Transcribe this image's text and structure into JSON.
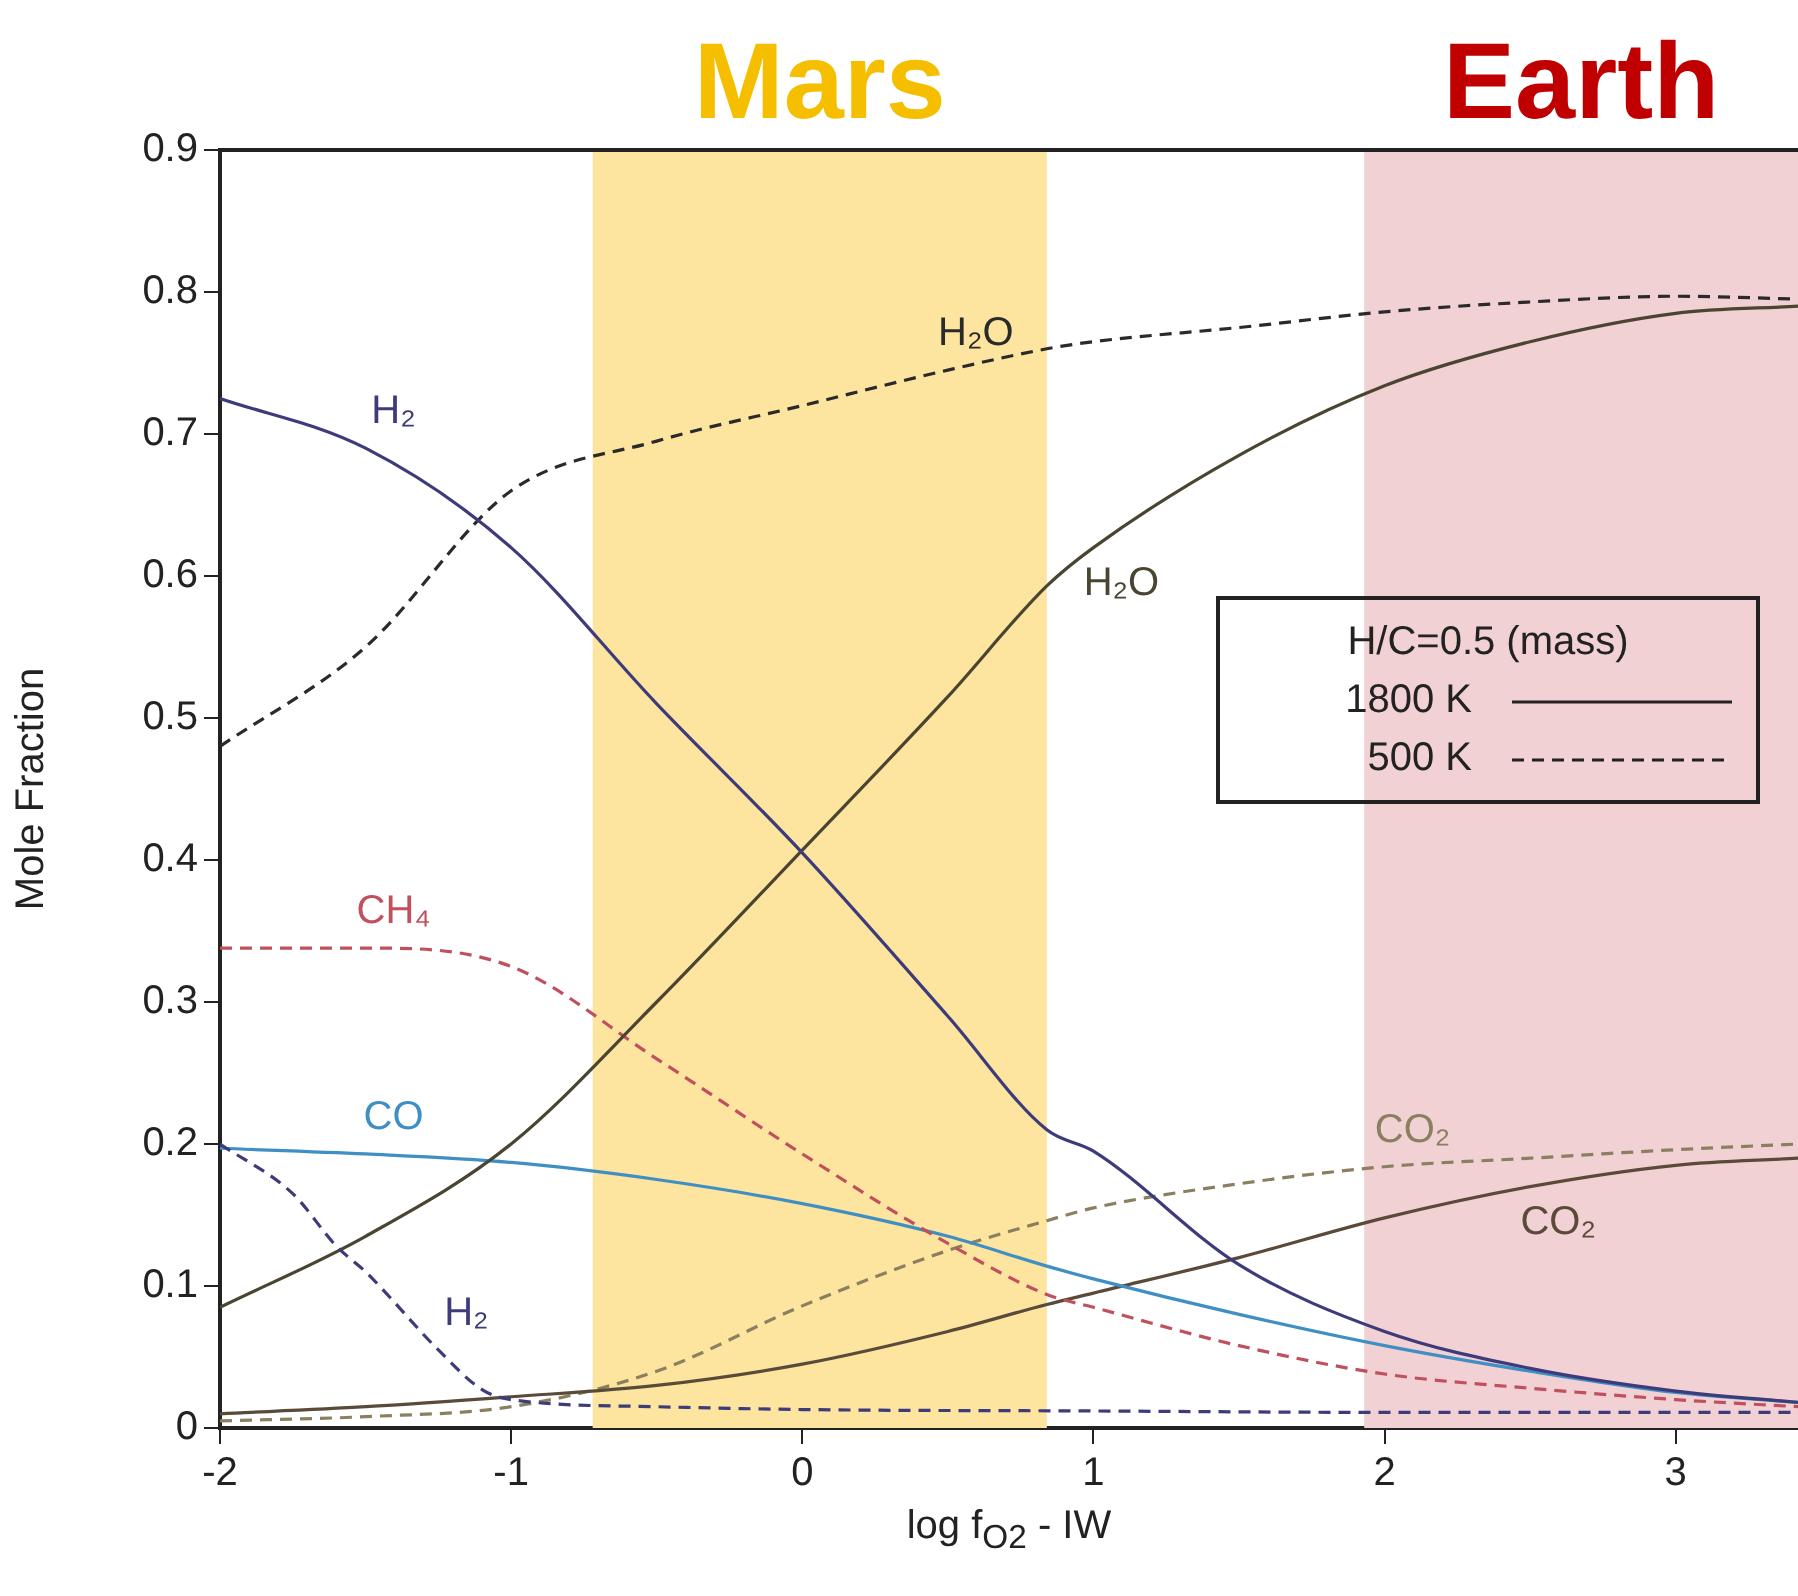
{
  "chart_data": {
    "type": "line",
    "xlabel": "log f$_{O2}$ - IW",
    "ylabel": "Mole Fraction",
    "legend_title": "H/C=0.5 (mass)",
    "legend": "right",
    "grid": false,
    "marker": "none",
    "x": [
      -2,
      -1.5,
      -1,
      -0.5,
      0,
      0.5,
      0.84,
      1,
      1.5,
      2,
      2.5,
      3,
      3.42
    ],
    "xlim": [
      -2,
      3.42
    ],
    "xticks": [
      -2,
      -1,
      0,
      1,
      2,
      3
    ],
    "ylim": [
      0,
      0.9
    ],
    "yticks": [
      0,
      0.1,
      0.2,
      0.3,
      0.4,
      0.5,
      0.6,
      0.7,
      0.8,
      0.9
    ],
    "series": [
      {
        "color": "#3d3b7a",
        "line_style": "solid",
        "values": [
          0.725,
          0.69,
          0.62,
          0.51,
          0.405,
          0.29,
          0.21,
          0.195,
          0.115,
          0.068,
          0.042,
          0.026,
          0.018
        ]
      },
      {
        "color": "#3d3b7a",
        "line_style": "dashed",
        "x": [
          -2,
          -1.75,
          -1.6,
          -1.5,
          -1.25,
          -1.1,
          -1,
          -0.5,
          0,
          1,
          2,
          3,
          3.42
        ],
        "values": [
          0.2,
          0.165,
          0.128,
          0.11,
          0.055,
          0.027,
          0.02,
          0.015,
          0.013,
          0.012,
          0.011,
          0.011,
          0.011
        ]
      },
      {
        "color": "#4a4530",
        "line_style": "solid",
        "values": [
          0.085,
          0.135,
          0.2,
          0.3,
          0.407,
          0.515,
          0.593,
          0.62,
          0.685,
          0.734,
          0.765,
          0.785,
          0.79
        ]
      },
      {
        "color": "#2a2a2a",
        "line_style": "dashed",
        "values": [
          0.48,
          0.55,
          0.66,
          0.695,
          0.72,
          0.745,
          0.76,
          0.765,
          0.775,
          0.786,
          0.793,
          0.797,
          0.795
        ]
      },
      {
        "color": "#c0505e",
        "line_style": "dashed",
        "values": [
          0.338,
          0.338,
          0.325,
          0.26,
          0.193,
          0.13,
          0.094,
          0.085,
          0.058,
          0.038,
          0.028,
          0.02,
          0.015
        ]
      },
      {
        "color": "#3f8fc4",
        "line_style": "solid",
        "values": [
          0.197,
          0.193,
          0.187,
          0.175,
          0.158,
          0.135,
          0.114,
          0.105,
          0.08,
          0.058,
          0.04,
          0.025,
          0.018
        ]
      },
      {
        "color": "#5a4a3a",
        "line_style": "solid",
        "values": [
          0.01,
          0.015,
          0.022,
          0.03,
          0.045,
          0.068,
          0.087,
          0.095,
          0.12,
          0.148,
          0.17,
          0.185,
          0.19
        ]
      },
      {
        "color": "#8a8060",
        "line_style": "dashed",
        "values": [
          0.005,
          0.008,
          0.015,
          0.04,
          0.086,
          0.125,
          0.146,
          0.155,
          0.172,
          0.184,
          0.19,
          0.196,
          0.2
        ]
      }
    ],
    "bands": [
      {
        "axis": "x",
        "from": -0.72,
        "to": 0.84,
        "label": "Mars",
        "color": "#fde59f"
      },
      {
        "axis": "x",
        "from": 1.93,
        "to": 3.42,
        "label": "Earth",
        "color": "#f2d1d4"
      }
    ],
    "annotations": [
      {
        "text": "H₂",
        "x": -1.5,
        "y": 0.69
      },
      {
        "text": "H₂O",
        "x": 0.5,
        "y": 0.745
      },
      {
        "text": "H₂O",
        "x": 1,
        "y": 0.62
      },
      {
        "text": "CH₄",
        "x": -1.5,
        "y": 0.338
      },
      {
        "text": "CO",
        "x": -1.5,
        "y": 0.193
      },
      {
        "text": "H₂",
        "x": -1.25,
        "y": 0.055
      },
      {
        "text": "CO₂",
        "x": 2,
        "y": 0.184
      },
      {
        "text": "CO₂",
        "x": 2.5,
        "y": 0.17
      },
      "1800 K",
      "500 K"
    ]
  }
}
